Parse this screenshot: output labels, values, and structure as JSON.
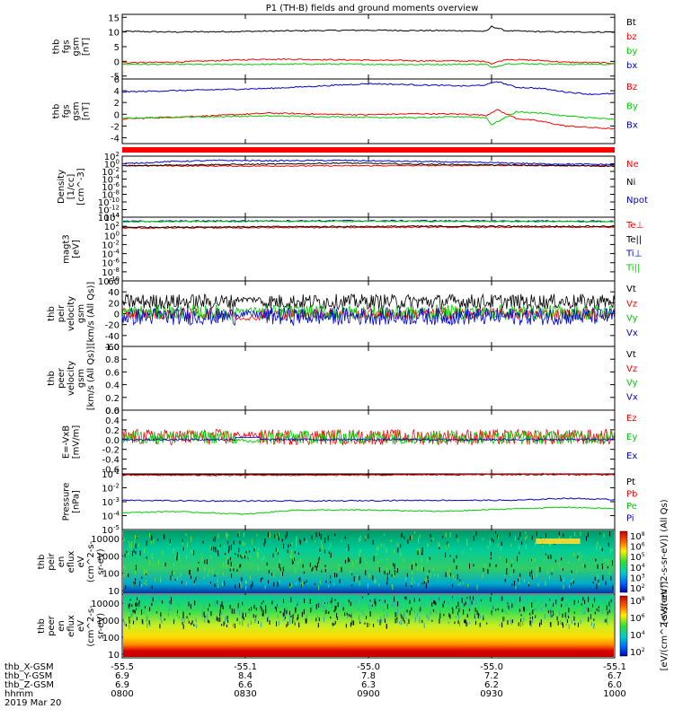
{
  "title": "P1 (TH-B) fields and ground moments overview",
  "chart_data": [
    {
      "type": "line",
      "panel_label": [
        "thb",
        "fgs",
        "gsm",
        "[nT]"
      ],
      "yticks": [
        "15",
        "10",
        "5",
        "0",
        "-5"
      ],
      "ylim": [
        -6,
        16
      ],
      "series": [
        {
          "name": "Bt",
          "color": "#000000",
          "x": [
            0,
            0.1,
            0.2,
            0.3,
            0.4,
            0.5,
            0.6,
            0.7,
            0.74,
            0.75,
            0.78,
            0.85,
            0.9,
            1.0
          ],
          "y": [
            10.2,
            10.0,
            10.1,
            10.3,
            10.5,
            10.6,
            10.5,
            10.4,
            10.2,
            11.9,
            10.4,
            10.1,
            10.0,
            10.0
          ]
        },
        {
          "name": "bz",
          "color": "#ff0000",
          "x": [
            0,
            0.1,
            0.2,
            0.3,
            0.4,
            0.5,
            0.6,
            0.7,
            0.74,
            0.75,
            0.78,
            0.85,
            0.9,
            1.0
          ],
          "y": [
            -0.5,
            -0.3,
            0.3,
            0.8,
            0.6,
            0.4,
            0.2,
            0.1,
            0.0,
            -0.8,
            0.7,
            0.3,
            -0.3,
            -0.6
          ]
        },
        {
          "name": "by",
          "color": "#00cc00",
          "x": [
            0,
            0.1,
            0.2,
            0.3,
            0.4,
            0.5,
            0.6,
            0.7,
            0.74,
            0.75,
            0.78,
            0.85,
            0.9,
            1.0
          ],
          "y": [
            -1.0,
            -1.0,
            -1.1,
            -1.0,
            -0.9,
            -1.0,
            -1.1,
            -1.0,
            -1.0,
            -2.2,
            -0.8,
            -0.9,
            -1.0,
            -1.0
          ]
        },
        {
          "name": "bx",
          "color": "#0000cc",
          "x": [
            0,
            1.0
          ],
          "y": [
            10.0,
            10.0
          ],
          "hidden": true
        }
      ]
    },
    {
      "type": "line",
      "panel_label": [
        "thb",
        "fgs",
        "gsm",
        "[nT]"
      ],
      "yticks": [
        "6",
        "4",
        "2",
        "0",
        "-2",
        "-4"
      ],
      "ylim": [
        -5,
        6
      ],
      "series": [
        {
          "name": "Bz",
          "color": "#ff0000",
          "x": [
            0,
            0.1,
            0.2,
            0.3,
            0.4,
            0.5,
            0.6,
            0.7,
            0.74,
            0.76,
            0.8,
            0.85,
            0.9,
            1.0
          ],
          "y": [
            -0.8,
            -0.5,
            -0.2,
            0.2,
            0.0,
            -0.1,
            0.1,
            0.0,
            -0.2,
            0.8,
            -0.7,
            -1.2,
            -2.0,
            -2.5
          ]
        },
        {
          "name": "By",
          "color": "#00cc00",
          "x": [
            0,
            0.1,
            0.2,
            0.3,
            0.4,
            0.5,
            0.6,
            0.7,
            0.74,
            0.75,
            0.8,
            0.85,
            0.9,
            1.0
          ],
          "y": [
            -0.7,
            -0.5,
            -0.4,
            -0.3,
            -0.4,
            -0.5,
            -0.6,
            -0.4,
            -0.6,
            -1.8,
            0.4,
            0.2,
            -0.3,
            -0.9
          ]
        },
        {
          "name": "Bx",
          "color": "#0000cc",
          "x": [
            0,
            0.1,
            0.2,
            0.3,
            0.4,
            0.5,
            0.6,
            0.7,
            0.74,
            0.76,
            0.8,
            0.85,
            0.9,
            0.95,
            1.0
          ],
          "y": [
            3.8,
            4.0,
            4.2,
            4.4,
            4.8,
            5.2,
            5.0,
            4.8,
            5.0,
            5.6,
            4.6,
            4.4,
            3.8,
            3.4,
            3.5
          ]
        }
      ]
    },
    {
      "type": "line",
      "scale": "log",
      "panel_label": [
        "Density",
        "[1/cc]",
        "[cm^-3]"
      ],
      "yticks": [
        "10^2",
        "10^0",
        "10^-2",
        "10^-4",
        "10^-6",
        "10^-8",
        "10^-10",
        "10^-12",
        "10^-14"
      ],
      "ylim": [
        -14,
        2
      ],
      "series": [
        {
          "name": "Ne",
          "color": "#ff0000",
          "x": [
            0,
            0.25,
            0.5,
            0.75,
            1.0
          ],
          "y": [
            -0.5,
            -0.6,
            -0.5,
            -0.4,
            -0.5
          ]
        },
        {
          "name": "Ni",
          "color": "#000000",
          "x": [
            0,
            0.1,
            0.2,
            0.3,
            0.45,
            0.6,
            0.75,
            0.9,
            1.0
          ],
          "y": [
            -0.6,
            -0.3,
            -0.2,
            -0.1,
            0.2,
            -0.1,
            -0.3,
            -0.5,
            -0.6
          ]
        },
        {
          "name": "Npot",
          "color": "#0000cc",
          "x": [
            0,
            0.1,
            0.2,
            0.3,
            0.45,
            0.6,
            0.75,
            0.85,
            1.0
          ],
          "y": [
            0.0,
            0.6,
            0.9,
            0.8,
            0.9,
            0.6,
            0.3,
            0.0,
            -0.2
          ]
        }
      ]
    },
    {
      "type": "line",
      "scale": "log",
      "panel_label": [
        "magt3",
        "[eV]"
      ],
      "yticks": [
        "10^4",
        "10^2",
        "10^0",
        "10^-2",
        "10^-4",
        "10^-6",
        "10^-8",
        "10^-10"
      ],
      "ylim": [
        -10,
        4
      ],
      "series": [
        {
          "name": "Te⊥",
          "color": "#ff0000",
          "x": [
            0,
            0.3,
            0.6,
            1.0
          ],
          "y": [
            1.6,
            1.7,
            1.8,
            1.8
          ]
        },
        {
          "name": "Te||",
          "color": "#000000",
          "x": [
            0,
            0.3,
            0.6,
            1.0
          ],
          "y": [
            1.8,
            1.9,
            2.0,
            2.0
          ]
        },
        {
          "name": "Ti⊥",
          "color": "#0000cc",
          "x": [
            0,
            0.3,
            0.6,
            1.0
          ],
          "y": [
            3.1,
            3.2,
            3.2,
            3.1
          ]
        },
        {
          "name": "Ti||",
          "color": "#00cc00",
          "x": [
            0,
            0.3,
            0.6,
            1.0
          ],
          "y": [
            3.0,
            3.1,
            3.1,
            3.0
          ]
        }
      ]
    },
    {
      "type": "line",
      "panel_label": [
        "thb",
        "peir",
        "velocity",
        "gsm",
        "[km/s (All Qs)]"
      ],
      "yticks": [
        "60",
        "40",
        "20",
        "0",
        "-20",
        "-40",
        "-60"
      ],
      "ylim": [
        -60,
        60
      ],
      "series": [
        {
          "name": "Vt",
          "color": "#000000",
          "mean": 22,
          "amp": 14
        },
        {
          "name": "Vz",
          "color": "#ff0000",
          "mean": 0,
          "amp": 10
        },
        {
          "name": "Vy",
          "color": "#00cc00",
          "mean": 2,
          "amp": 14
        },
        {
          "name": "Vx",
          "color": "#0000cc",
          "mean": -5,
          "amp": 16
        }
      ]
    },
    {
      "type": "line",
      "panel_label": [
        "thb",
        "peer",
        "velocity",
        "gsm",
        "[km/s (All Qs)]"
      ],
      "yticks": [
        "1.0",
        "0.8",
        "0.6",
        "0.4",
        "0.2",
        "0.0"
      ],
      "ylim": [
        0,
        1
      ],
      "series": [
        {
          "name": "Vt",
          "color": "#000000"
        },
        {
          "name": "Vz",
          "color": "#ff0000"
        },
        {
          "name": "Vy",
          "color": "#00cc00"
        },
        {
          "name": "Vx",
          "color": "#0000cc"
        }
      ]
    },
    {
      "type": "line",
      "panel_label": [
        "E=-VxB",
        "[mV/m]"
      ],
      "yticks": [
        "0.6",
        "0.4",
        "0.2",
        "0.0",
        "-0.2",
        "-0.4",
        "-0.6"
      ],
      "ylim": [
        -0.7,
        0.6
      ],
      "series": [
        {
          "name": "Ez",
          "color": "#ff0000",
          "mean": 0.05,
          "amp": 0.16
        },
        {
          "name": "Ey",
          "color": "#00cc00",
          "mean": 0.05,
          "amp": 0.14
        },
        {
          "name": "Ex",
          "color": "#0000cc",
          "mean": 0.0,
          "amp": 0.02
        }
      ]
    },
    {
      "type": "line",
      "scale": "log",
      "panel_label": [
        "Pressure",
        "[nPa]"
      ],
      "yticks": [
        "10^-1",
        "10^-2",
        "10^-3",
        "10^-4",
        "10^-5"
      ],
      "ylim": [
        -5,
        -1
      ],
      "series": [
        {
          "name": "Pt",
          "color": "#000000",
          "x": [
            0,
            0.5,
            1.0
          ],
          "y": [
            -1.05,
            -1.05,
            -1.05
          ]
        },
        {
          "name": "Pb",
          "color": "#ff0000",
          "x": [
            0,
            0.5,
            0.85,
            1.0
          ],
          "y": [
            -1.1,
            -1.1,
            -1.0,
            -1.05
          ]
        },
        {
          "name": "Pe",
          "color": "#00cc00",
          "x": [
            0,
            0.1,
            0.25,
            0.35,
            0.5,
            0.65,
            0.8,
            0.9,
            1.0
          ],
          "y": [
            -3.8,
            -3.7,
            -3.9,
            -3.6,
            -3.6,
            -3.7,
            -3.5,
            -3.4,
            -3.5
          ]
        },
        {
          "name": "Pi",
          "color": "#0000cc",
          "x": [
            0,
            0.2,
            0.4,
            0.6,
            0.8,
            0.9,
            1.0
          ],
          "y": [
            -2.9,
            -2.95,
            -2.95,
            -2.9,
            -2.9,
            -2.75,
            -2.85
          ]
        }
      ]
    },
    {
      "type": "heatmap",
      "panel_label": [
        "thb",
        "peir",
        "en",
        "eflux",
        "eV",
        "(cm^2-s-",
        "sr-eV)"
      ],
      "yticks": [
        "10000",
        "1000",
        "100",
        "10"
      ],
      "colorbar_ticks": [
        "10^8",
        "10^6",
        "10^5",
        "10^4",
        "10^3",
        "10^2"
      ],
      "colorbar_label": "[eV/(cm^2-s-sr-eV)] (All Qs)"
    },
    {
      "type": "heatmap",
      "panel_label": [
        "thb",
        "peer",
        "en",
        "eflux",
        "eV",
        "(cm^2-s-",
        "sr-eV)"
      ],
      "yticks": [
        "10000",
        "1000",
        "100",
        "10"
      ],
      "colorbar_ticks": [
        "10^8",
        "10^6",
        "10^4",
        "10^2"
      ],
      "colorbar_label": "[eV/(cm^2-s-sr-eV)]"
    }
  ],
  "xaxis": {
    "rows": [
      {
        "label": "thb_X-GSM",
        "values": [
          "-55.5",
          "-55.1",
          "-55.0",
          "-55.0",
          "-55.1"
        ]
      },
      {
        "label": "thb_Y-GSM",
        "values": [
          "6.9",
          "8.4",
          "7.8",
          "7.2",
          "6.7"
        ]
      },
      {
        "label": "thb_Z-GSM",
        "values": [
          "6.9",
          "6.6",
          "6.3",
          "6.2",
          "6.0"
        ]
      },
      {
        "label": "hhmm",
        "values": [
          "0800",
          "0830",
          "0900",
          "0930",
          "1000"
        ]
      }
    ],
    "date": "2019 Mar 20"
  }
}
